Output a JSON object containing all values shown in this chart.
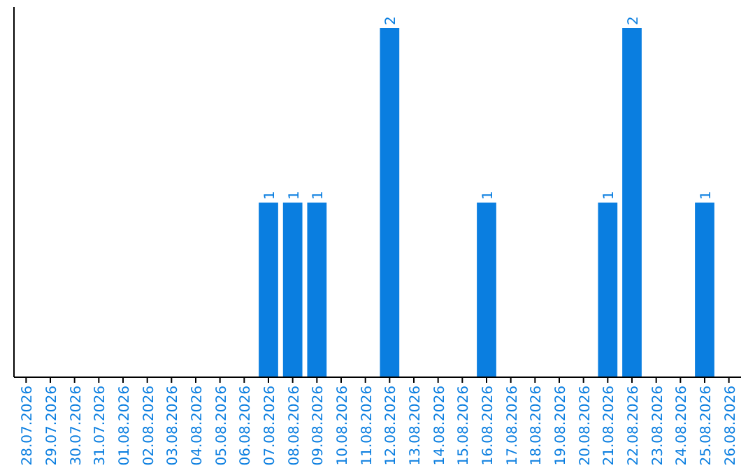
{
  "chart_data": {
    "type": "bar",
    "categories": [
      "28.07.2026",
      "29.07.2026",
      "30.07.2026",
      "31.07.2026",
      "01.08.2026",
      "02.08.2026",
      "03.08.2026",
      "04.08.2026",
      "05.08.2026",
      "06.08.2026",
      "07.08.2026",
      "08.08.2026",
      "09.08.2026",
      "10.08.2026",
      "11.08.2026",
      "12.08.2026",
      "13.08.2026",
      "14.08.2026",
      "15.08.2026",
      "16.08.2026",
      "17.08.2026",
      "18.08.2026",
      "19.08.2026",
      "20.08.2026",
      "21.08.2026",
      "22.08.2026",
      "23.08.2026",
      "24.08.2026",
      "25.08.2026",
      "26.08.2026"
    ],
    "values": [
      0,
      0,
      0,
      0,
      0,
      0,
      0,
      0,
      0,
      0,
      1,
      1,
      1,
      0,
      0,
      2,
      0,
      0,
      0,
      1,
      0,
      0,
      0,
      0,
      1,
      2,
      0,
      0,
      1,
      0
    ],
    "value_labels": [
      null,
      null,
      null,
      null,
      null,
      null,
      null,
      null,
      null,
      null,
      "1",
      "1",
      "1",
      null,
      null,
      "2",
      null,
      null,
      null,
      "1",
      null,
      null,
      null,
      null,
      "1",
      "2",
      null,
      null,
      "1",
      null
    ],
    "color": "#0a7ee0",
    "ylim": [
      0,
      2.12
    ],
    "tick_labels": "x"
  }
}
